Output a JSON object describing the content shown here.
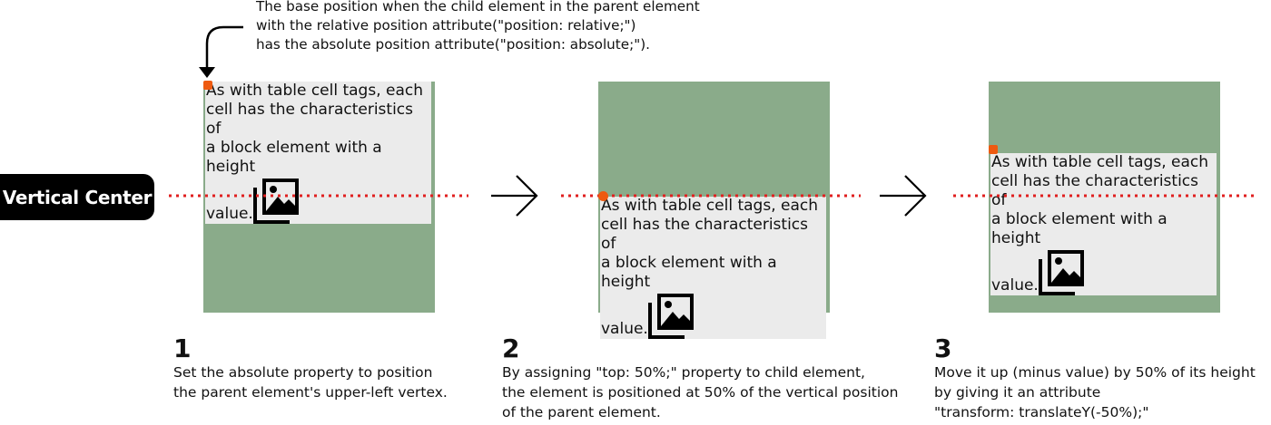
{
  "annotation": {
    "lines": [
      "The base position when the child element in the parent element",
      "with the relative position attribute(\"position: relative;\")",
      "has the absolute position attribute(\"position: absolute;\")."
    ]
  },
  "axis_label": "Vertical Center",
  "child_text": {
    "line1": "As with table cell tags, each",
    "line2": "cell has the characteristics of",
    "line3": "a block element with a height",
    "line4": "value."
  },
  "steps": [
    {
      "number": "1",
      "lines": [
        "Set the absolute property to position",
        "the parent element's upper-left vertex."
      ]
    },
    {
      "number": "2",
      "lines": [
        "By assigning \"top: 50%;\" property to child element,",
        "the element is positioned at 50% of the vertical position",
        "of the parent element."
      ]
    },
    {
      "number": "3",
      "lines": [
        "Move it up (minus value) by 50% of its height",
        "by giving it an attribute",
        "\"transform: translateY(-50%);\""
      ]
    }
  ],
  "icons": {
    "pointer": "curved-arrow-down-icon",
    "transition": "arrow-right-icon",
    "picture": "image-gallery-icon"
  },
  "colors": {
    "parent_box": "#8aab8a",
    "child_box": "#ebebeb",
    "center_line": "#e02020",
    "marker": "#ee5a10",
    "label_bg": "#000000"
  }
}
